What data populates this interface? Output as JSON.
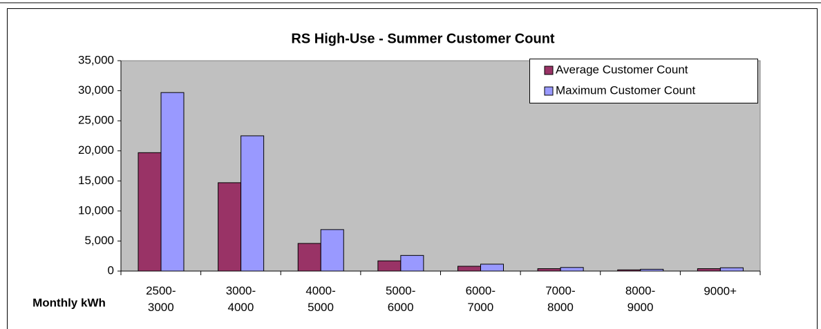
{
  "chart_data": {
    "type": "bar",
    "title": "RS High-Use - Summer Customer Count",
    "x_label": "Monthly kWh",
    "categories": [
      "2500-3000",
      "3000-4000",
      "4000-5000",
      "5000-6000",
      "6000-7000",
      "7000-8000",
      "8000-9000",
      "9000+"
    ],
    "series": [
      {
        "name": "Average Customer Count",
        "color": "#993366",
        "values": [
          19700,
          14700,
          4600,
          1700,
          800,
          400,
          200,
          400
        ]
      },
      {
        "name": "Maximum Customer Count",
        "color": "#9999ff",
        "values": [
          29700,
          22500,
          6900,
          2600,
          1150,
          600,
          300,
          550
        ]
      }
    ],
    "ylim": [
      0,
      35000
    ],
    "yticks": [
      0,
      {
        "value": 5000,
        "label": "5,000"
      },
      {
        "value": 10000,
        "label": "10,000"
      },
      {
        "value": 15000,
        "label": "15,000"
      },
      {
        "value": 20000,
        "label": "20,000"
      },
      {
        "value": 25000,
        "label": "25,000"
      },
      {
        "value": 30000,
        "label": "30,000"
      },
      {
        "value": 35000,
        "label": "35,000"
      }
    ],
    "plot_background": "#c0c0c0",
    "legend": "top-right"
  }
}
